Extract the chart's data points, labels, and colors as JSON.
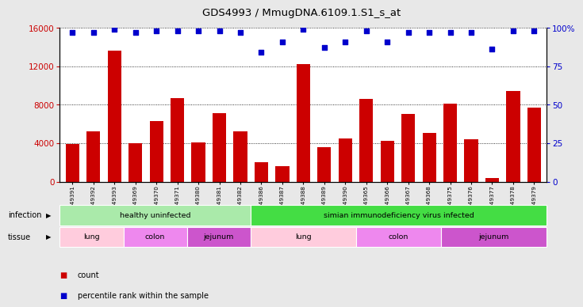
{
  "title": "GDS4993 / MmugDNA.6109.1.S1_s_at",
  "samples": [
    "GSM1249391",
    "GSM1249392",
    "GSM1249393",
    "GSM1249369",
    "GSM1249370",
    "GSM1249371",
    "GSM1249380",
    "GSM1249381",
    "GSM1249382",
    "GSM1249386",
    "GSM1249387",
    "GSM1249388",
    "GSM1249389",
    "GSM1249390",
    "GSM1249365",
    "GSM1249366",
    "GSM1249367",
    "GSM1249368",
    "GSM1249375",
    "GSM1249376",
    "GSM1249377",
    "GSM1249378",
    "GSM1249379"
  ],
  "counts": [
    3900,
    5200,
    13600,
    4000,
    6300,
    8700,
    4100,
    7100,
    5200,
    2000,
    1600,
    12200,
    3600,
    4500,
    8600,
    4200,
    7000,
    5100,
    8100,
    4400,
    400,
    9400,
    7700
  ],
  "percentiles": [
    97,
    97,
    99,
    97,
    98,
    98,
    98,
    98,
    97,
    84,
    91,
    99,
    87,
    91,
    98,
    91,
    97,
    97,
    97,
    97,
    86,
    98,
    98
  ],
  "bar_color": "#cc0000",
  "dot_color": "#0000cc",
  "left_ylim": [
    0,
    16000
  ],
  "left_yticks": [
    0,
    4000,
    8000,
    12000,
    16000
  ],
  "right_ylim": [
    0,
    100
  ],
  "right_yticks": [
    0,
    25,
    50,
    75,
    100
  ],
  "infection_groups": [
    {
      "label": "healthy uninfected",
      "start": 0,
      "end": 9,
      "color": "#aaeaaa"
    },
    {
      "label": "simian immunodeficiency virus infected",
      "start": 9,
      "end": 23,
      "color": "#44dd44"
    }
  ],
  "tissue_groups": [
    {
      "label": "lung",
      "start": 0,
      "end": 3,
      "color": "#ffccdd"
    },
    {
      "label": "colon",
      "start": 3,
      "end": 6,
      "color": "#ee88ee"
    },
    {
      "label": "jejunum",
      "start": 6,
      "end": 9,
      "color": "#cc55cc"
    },
    {
      "label": "lung",
      "start": 9,
      "end": 14,
      "color": "#ffccdd"
    },
    {
      "label": "colon",
      "start": 14,
      "end": 18,
      "color": "#ee88ee"
    },
    {
      "label": "jejunum",
      "start": 18,
      "end": 23,
      "color": "#cc55cc"
    }
  ],
  "bg_color": "#e8e8e8",
  "plot_bg": "#ffffff"
}
